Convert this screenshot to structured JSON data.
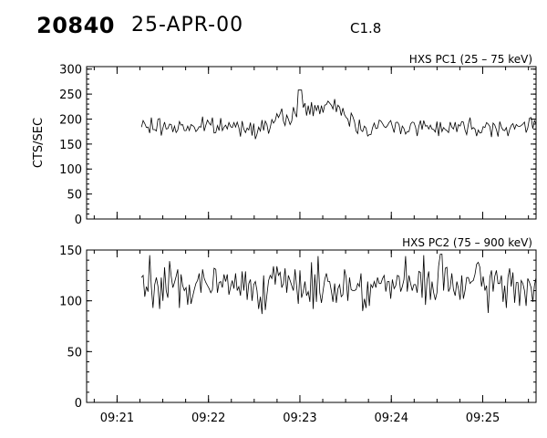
{
  "header": {
    "event_number": "20840",
    "date": "25-APR-00",
    "flare_class": "C1.8"
  },
  "chart_data": [
    {
      "type": "line",
      "title": "HXS PC1 (25 – 75 keV)",
      "ylabel": "CTS/SEC",
      "xlabel": "",
      "ylim": [
        0,
        305
      ],
      "yticks": [
        0,
        50,
        100,
        150,
        200,
        250,
        300
      ],
      "xlim": [
        "09:20:40",
        "09:25:35"
      ],
      "xticks": [
        "09:21",
        "09:22",
        "09:23",
        "09:24",
        "09:25"
      ],
      "grid": false,
      "x_start": "09:21:16",
      "x_end": "09:25:35",
      "points": 240,
      "series": [
        {
          "values": []
        }
      ],
      "shape_notes": "Noisy counts ~180-200 from 09:21:16 to 09:25:35; rises to ~215-225 around 09:22:40-09:23:05 with a peak near 260 at ~09:23:00, then back to ~190."
    },
    {
      "type": "line",
      "title": "HXS PC2 (75 – 900 keV)",
      "ylabel": "",
      "xlabel": "",
      "ylim": [
        0,
        150
      ],
      "yticks": [
        0,
        50,
        100,
        150
      ],
      "xlim": [
        "09:20:40",
        "09:25:35"
      ],
      "xticks": [
        "09:21",
        "09:22",
        "09:23",
        "09:24",
        "09:25"
      ],
      "tick_labels_x": [
        "09:21",
        "09:22",
        "09:23",
        "09:24",
        "09:25"
      ],
      "grid": false,
      "x_start": "09:21:16",
      "x_end": "09:25:35",
      "points": 240,
      "series": [
        {
          "values": []
        }
      ],
      "shape_notes": "Noisy counts ~115 ± 15 throughout, spike near 145 at ~09:21:20 and ~09:24:25."
    }
  ]
}
